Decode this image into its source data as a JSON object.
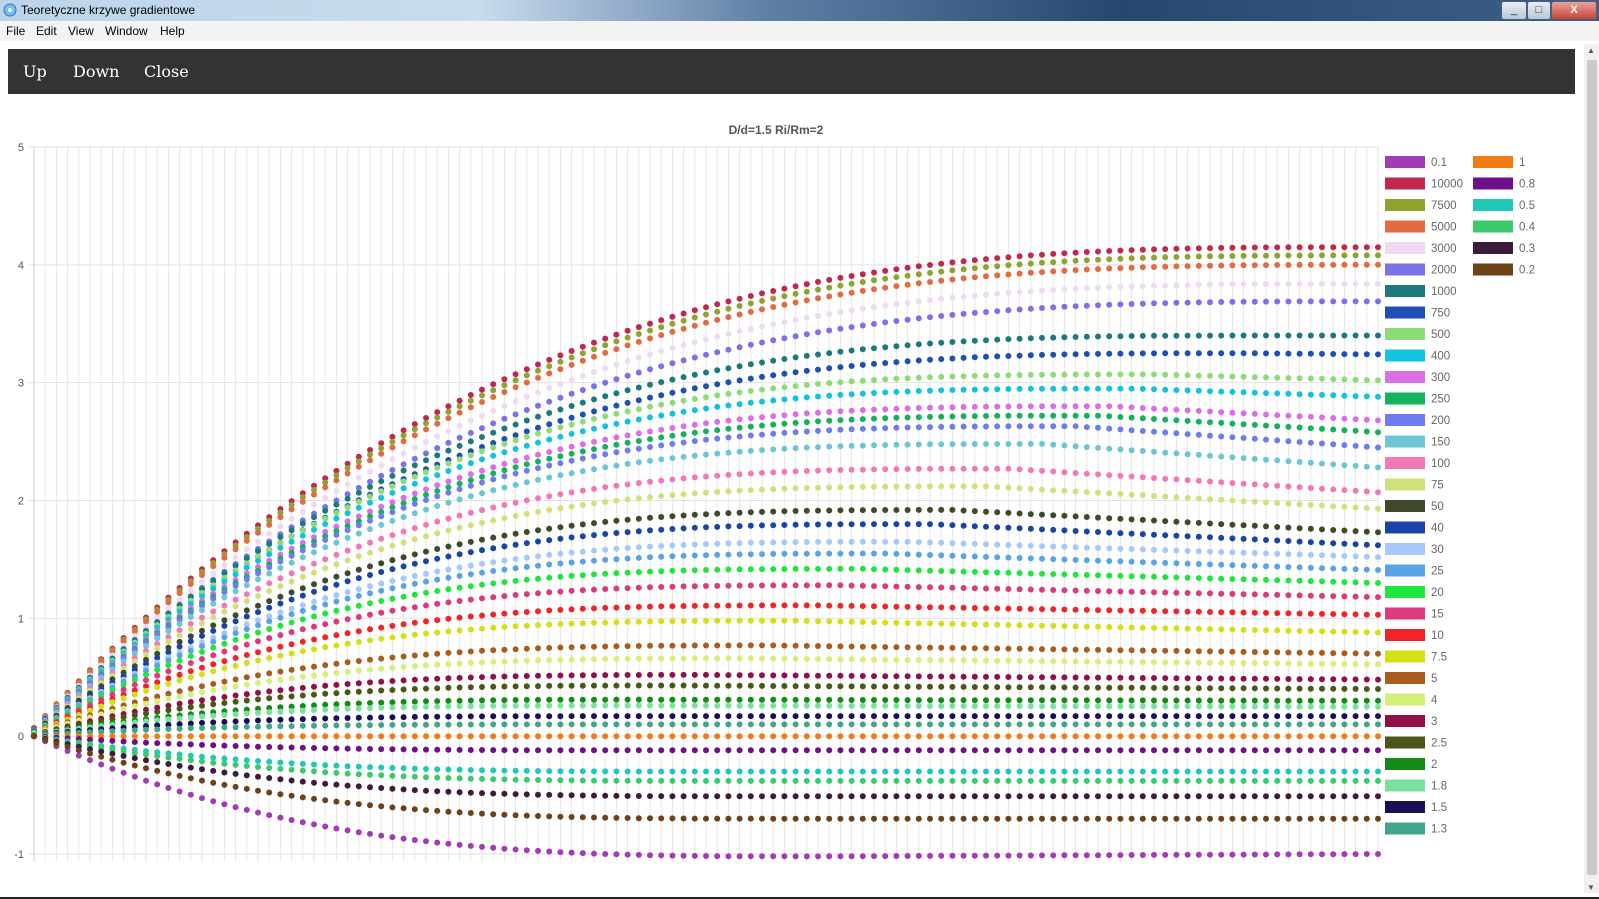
{
  "window": {
    "title": "Teoretyczne krzywe gradientowe",
    "controls": [
      "_",
      "□",
      "X"
    ]
  },
  "menu": [
    "File",
    "Edit",
    "View",
    "Window",
    "Help"
  ],
  "toolbar": {
    "up": "Up",
    "down": "Down",
    "close": "Close"
  },
  "chart_data": {
    "type": "scatter",
    "title": "D/d=1.5   Ri/Rm=2",
    "xlabel": "",
    "ylabel": "",
    "ylim": [
      -1,
      5
    ],
    "yticks": [
      -1,
      0,
      1,
      2,
      3,
      4,
      5
    ],
    "grid": true,
    "legend_position": "right",
    "x": [
      0,
      1,
      2,
      3,
      4,
      5,
      6,
      7,
      8,
      9,
      10,
      11,
      12,
      13,
      14,
      15,
      16,
      17,
      18,
      19,
      20,
      21,
      22,
      23,
      24,
      25,
      26,
      27,
      28,
      29,
      30,
      31,
      32,
      33,
      34,
      35,
      36,
      37,
      38,
      39,
      40,
      41,
      42,
      43,
      44,
      45,
      46,
      47,
      48,
      49,
      50,
      51,
      52,
      53,
      54,
      55,
      56,
      57,
      58,
      59,
      60,
      61,
      62,
      63,
      64,
      65,
      66,
      67,
      68,
      69,
      70,
      71,
      72,
      73,
      74,
      75,
      76,
      77,
      78,
      79,
      80,
      81,
      82,
      83,
      84,
      85,
      86,
      87,
      88,
      89,
      90,
      91,
      92,
      93,
      94,
      95,
      96,
      97,
      98,
      99,
      100,
      101,
      102,
      103,
      104,
      105,
      106,
      107,
      108,
      109,
      110,
      111,
      112,
      113,
      114,
      115,
      116,
      117,
      118,
      119,
      120
    ],
    "series_shape": "y = plateau - (plateau - start) * (1 - s)^3 for s = x/peak_x up to peak_x, then a slow linear drift of end - plateau",
    "series": [
      {
        "name": "0.1",
        "color": "#a23cb4",
        "start": 0.0,
        "plateau": -1.02,
        "peak_x": 70,
        "end": -1.0
      },
      {
        "name": "10000",
        "color": "#c0284f",
        "start": 0.07,
        "plateau": 4.15,
        "peak_x": 120,
        "end": 4.15
      },
      {
        "name": "7500",
        "color": "#8ea42e",
        "start": 0.07,
        "plateau": 4.08,
        "peak_x": 120,
        "end": 4.08
      },
      {
        "name": "5000",
        "color": "#e36a43",
        "start": 0.07,
        "plateau": 4.0,
        "peak_x": 120,
        "end": 4.0
      },
      {
        "name": "3000",
        "color": "#eedbf2",
        "start": 0.06,
        "plateau": 3.84,
        "peak_x": 120,
        "end": 3.84
      },
      {
        "name": "2000",
        "color": "#7b72e8",
        "start": 0.06,
        "plateau": 3.69,
        "peak_x": 120,
        "end": 3.69
      },
      {
        "name": "1000",
        "color": "#1c7a7e",
        "start": 0.06,
        "plateau": 3.4,
        "peak_x": 110,
        "end": 3.4
      },
      {
        "name": "750",
        "color": "#1d4fb4",
        "start": 0.06,
        "plateau": 3.25,
        "peak_x": 108,
        "end": 3.24
      },
      {
        "name": "500",
        "color": "#8edc76",
        "start": 0.05,
        "plateau": 3.07,
        "peak_x": 100,
        "end": 3.02
      },
      {
        "name": "400",
        "color": "#12c3db",
        "start": 0.05,
        "plateau": 2.95,
        "peak_x": 98,
        "end": 2.88
      },
      {
        "name": "300",
        "color": "#da6fe8",
        "start": 0.05,
        "plateau": 2.8,
        "peak_x": 96,
        "end": 2.68
      },
      {
        "name": "250",
        "color": "#14b25f",
        "start": 0.05,
        "plateau": 2.72,
        "peak_x": 95,
        "end": 2.58
      },
      {
        "name": "200",
        "color": "#6f7cf1",
        "start": 0.05,
        "plateau": 2.63,
        "peak_x": 93,
        "end": 2.45
      },
      {
        "name": "150",
        "color": "#6cc6d6",
        "start": 0.04,
        "plateau": 2.48,
        "peak_x": 90,
        "end": 2.28
      },
      {
        "name": "100",
        "color": "#f278b6",
        "start": 0.04,
        "plateau": 2.27,
        "peak_x": 87,
        "end": 2.07
      },
      {
        "name": "75",
        "color": "#d1e07a",
        "start": 0.04,
        "plateau": 2.12,
        "peak_x": 85,
        "end": 1.93
      },
      {
        "name": "50",
        "color": "#3e4a29",
        "start": 0.04,
        "plateau": 1.92,
        "peak_x": 82,
        "end": 1.73
      },
      {
        "name": "40",
        "color": "#1746a6",
        "start": 0.03,
        "plateau": 1.8,
        "peak_x": 80,
        "end": 1.62
      },
      {
        "name": "30",
        "color": "#a6c8fa",
        "start": 0.03,
        "plateau": 1.65,
        "peak_x": 78,
        "end": 1.52
      },
      {
        "name": "25",
        "color": "#5aa3e8",
        "start": 0.03,
        "plateau": 1.55,
        "peak_x": 76,
        "end": 1.41
      },
      {
        "name": "20",
        "color": "#1ee63c",
        "start": 0.03,
        "plateau": 1.42,
        "peak_x": 74,
        "end": 1.3
      },
      {
        "name": "15",
        "color": "#dc3a7d",
        "start": 0.02,
        "plateau": 1.28,
        "peak_x": 72,
        "end": 1.18
      },
      {
        "name": "10",
        "color": "#f0242a",
        "start": 0.02,
        "plateau": 1.11,
        "peak_x": 70,
        "end": 1.03
      },
      {
        "name": "7.5",
        "color": "#d4e012",
        "start": 0.02,
        "plateau": 0.98,
        "peak_x": 68,
        "end": 0.88
      },
      {
        "name": "5",
        "color": "#a85d1e",
        "start": 0.02,
        "plateau": 0.77,
        "peak_x": 66,
        "end": 0.7
      },
      {
        "name": "4",
        "color": "#d4f078",
        "start": 0.02,
        "plateau": 0.66,
        "peak_x": 64,
        "end": 0.61
      },
      {
        "name": "3",
        "color": "#930f48",
        "start": 0.01,
        "plateau": 0.52,
        "peak_x": 60,
        "end": 0.48
      },
      {
        "name": "2.5",
        "color": "#4a5717",
        "start": 0.01,
        "plateau": 0.43,
        "peak_x": 58,
        "end": 0.4
      },
      {
        "name": "2",
        "color": "#148b16",
        "start": 0.01,
        "plateau": 0.31,
        "peak_x": 55,
        "end": 0.3
      },
      {
        "name": "1.8",
        "color": "#7ae0a0",
        "start": 0.01,
        "plateau": 0.26,
        "peak_x": 54,
        "end": 0.25
      },
      {
        "name": "1.5",
        "color": "#1a0f54",
        "start": 0.01,
        "plateau": 0.17,
        "peak_x": 52,
        "end": 0.17
      },
      {
        "name": "1.3",
        "color": "#41a58e",
        "start": 0.01,
        "plateau": 0.1,
        "peak_x": 50,
        "end": 0.1
      },
      {
        "name": "1",
        "color": "#f07c12",
        "start": 0.0,
        "plateau": 0.0,
        "peak_x": 40,
        "end": 0.0
      },
      {
        "name": "0.8",
        "color": "#6e1086",
        "start": 0.0,
        "plateau": -0.12,
        "peak_x": 55,
        "end": -0.12
      },
      {
        "name": "0.5",
        "color": "#20c8b8",
        "start": 0.0,
        "plateau": -0.3,
        "peak_x": 60,
        "end": -0.3
      },
      {
        "name": "0.4",
        "color": "#3cc96a",
        "start": 0.0,
        "plateau": -0.38,
        "peak_x": 62,
        "end": -0.38
      },
      {
        "name": "0.3",
        "color": "#3e1c3c",
        "start": 0.0,
        "plateau": -0.51,
        "peak_x": 64,
        "end": -0.51
      },
      {
        "name": "0.2",
        "color": "#6e4218",
        "start": 0.0,
        "plateau": -0.7,
        "peak_x": 66,
        "end": -0.7
      }
    ]
  }
}
